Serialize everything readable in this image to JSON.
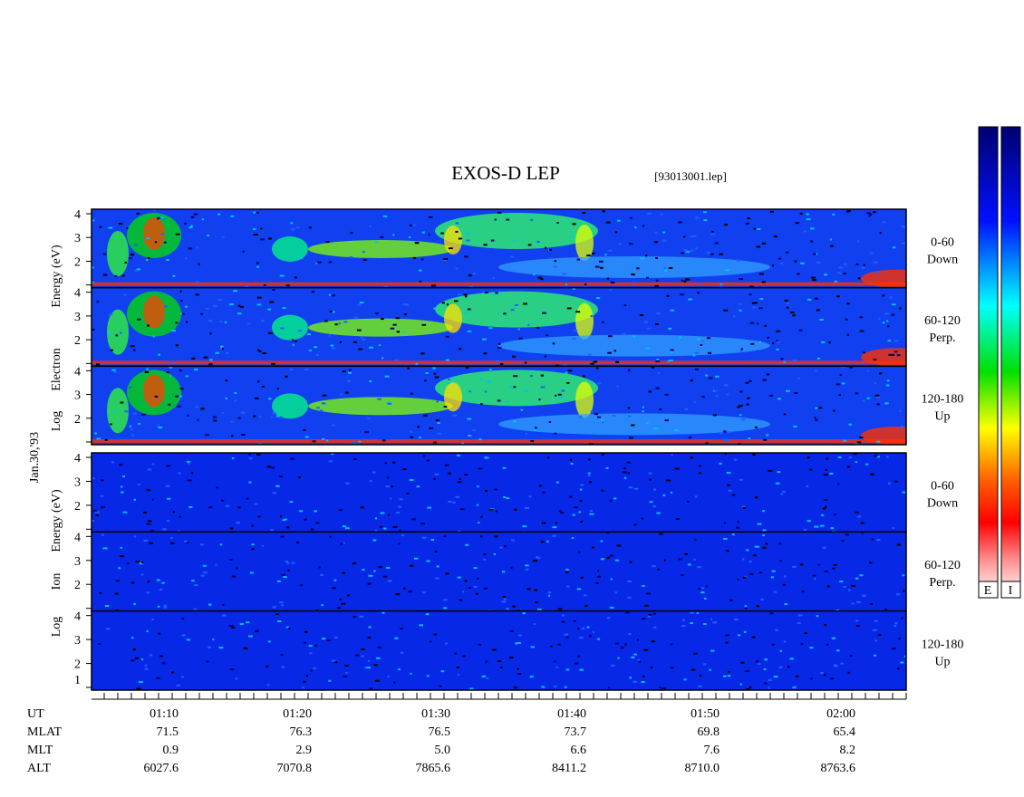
{
  "title": "EXOS-D LEP",
  "file": "[93013001.lep]",
  "electron_axis_label": [
    "Log",
    "Electron",
    "Energy (eV)"
  ],
  "ion_axis_label": [
    "Log",
    "Ion",
    "Energy (eV)"
  ],
  "date": "Jan.30,'93",
  "energy_ticks": [
    "4",
    "3",
    "2",
    "1"
  ],
  "pitch_angle_panels": [
    {
      "range": "0-60",
      "direction": "Down"
    },
    {
      "range": "60-120",
      "direction": "Perp."
    },
    {
      "range": "120-180",
      "direction": "Up"
    }
  ],
  "colorbars": [
    "E",
    "I"
  ],
  "orbit": {
    "rows": [
      {
        "label": "UT",
        "values": [
          "01:10",
          "01:20",
          "01:30",
          "01:40",
          "01:50",
          "02:00"
        ]
      },
      {
        "label": "MLAT",
        "values": [
          "71.5",
          "76.3",
          "76.5",
          "73.7",
          "69.8",
          "65.4"
        ]
      },
      {
        "label": "MLT",
        "values": [
          "0.9",
          "2.9",
          "5.0",
          "6.6",
          "7.6",
          "8.2"
        ]
      },
      {
        "label": "ALT",
        "values": [
          "6027.6",
          "7070.8",
          "7865.6",
          "8411.2",
          "8710.0",
          "8763.6"
        ]
      }
    ]
  }
}
